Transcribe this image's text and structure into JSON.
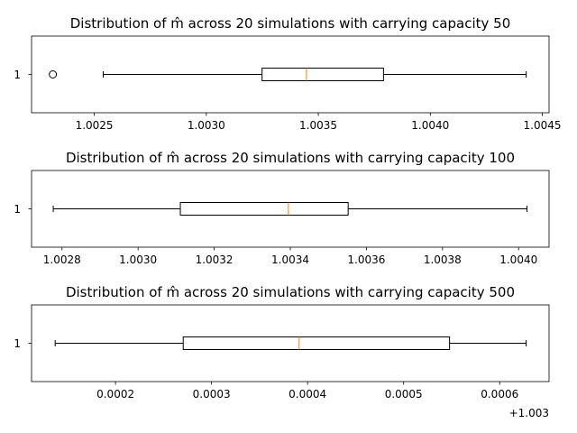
{
  "chart_data": [
    {
      "type": "boxplot",
      "orientation": "horizontal",
      "title": "Distribution of m̂ across 20 simulations with carrying capacity 50",
      "ytick_labels": [
        "1"
      ],
      "xlim": [
        1.00222,
        1.00453
      ],
      "xticks": [
        1.0025,
        1.003,
        1.0035,
        1.004,
        1.0045
      ],
      "xtick_labels": [
        "1.0025",
        "1.0030",
        "1.0035",
        "1.0040",
        "1.0045"
      ],
      "offset_text": "",
      "box": {
        "whislo": 1.00254,
        "q1": 1.003249,
        "median": 1.003447,
        "q3": 1.003791,
        "whishi": 1.004428,
        "fliers": [
          1.002315
        ]
      },
      "colors": {
        "median": "#ff7f0e",
        "box": "#000000"
      }
    },
    {
      "type": "boxplot",
      "orientation": "horizontal",
      "title": "Distribution of m̂ across 20 simulations with carrying capacity 100",
      "ytick_labels": [
        "1"
      ],
      "xlim": [
        1.00272,
        1.00408
      ],
      "xticks": [
        1.0028,
        1.003,
        1.0032,
        1.0034,
        1.0036,
        1.0038,
        1.004
      ],
      "xtick_labels": [
        "1.0028",
        "1.0030",
        "1.0032",
        "1.0034",
        "1.0036",
        "1.0038",
        "1.0040"
      ],
      "offset_text": "",
      "box": {
        "whislo": 1.002777,
        "q1": 1.003111,
        "median": 1.003395,
        "q3": 1.003552,
        "whishi": 1.004022,
        "fliers": []
      },
      "colors": {
        "median": "#ff7f0e",
        "box": "#000000"
      }
    },
    {
      "type": "boxplot",
      "orientation": "horizontal",
      "title": "Distribution of m̂ across 20 simulations with carrying capacity 500",
      "ytick_labels": [
        "1"
      ],
      "xlim": [
        0.0001126,
        0.0006514
      ],
      "xlim_offset": 1.003,
      "xticks": [
        0.0002,
        0.0003,
        0.0004,
        0.0005,
        0.0006
      ],
      "xtick_labels": [
        "0.0002",
        "0.0003",
        "0.0004",
        "0.0005",
        "0.0006"
      ],
      "offset_text": "+1.003",
      "box": {
        "whislo": 0.0001372,
        "q1": 0.0002705,
        "median": 0.0003912,
        "q3": 0.0005478,
        "whishi": 0.0006276,
        "fliers": []
      },
      "colors": {
        "median": "#ff7f0e",
        "box": "#000000"
      }
    }
  ]
}
